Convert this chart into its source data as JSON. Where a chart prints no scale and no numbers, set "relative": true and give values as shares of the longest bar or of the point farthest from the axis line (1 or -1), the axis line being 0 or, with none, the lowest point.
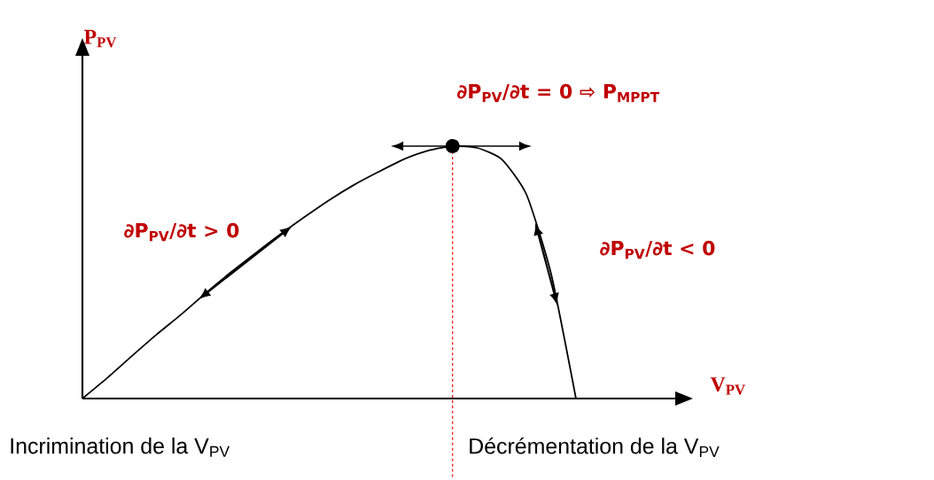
{
  "chart_data": {
    "type": "line",
    "relative": true,
    "xlabel": "V$_{PV}$",
    "ylabel": "P$_{PV}$",
    "categories": [
      null,
      null,
      null,
      null,
      null,
      null,
      null,
      null,
      null,
      null,
      null,
      null,
      null,
      null,
      null,
      null,
      null,
      null,
      null,
      null,
      null,
      null,
      null,
      null,
      null
    ],
    "series": [
      {
        "color": "#000000",
        "values": [
          0,
          0.081,
          0.168,
          0.253,
          0.333,
          0.418,
          0.499,
          0.575,
          0.649,
          0.719,
          0.786,
          0.846,
          0.898,
          0.947,
          0.982,
          1.0,
          0.993,
          0.947,
          0.807,
          0.491,
          0,
          null,
          null,
          null,
          null
        ]
      }
    ],
    "marker": "none",
    "annotations": [
      "∂P$_{PV}$/∂t = 0 ⇨ P$_{MPPT}$",
      "∂P$_{PV}$/∂t > 0",
      "∂P$_{PV}$/∂t < 0",
      "Incrimination de la V$_{PV}$",
      "Décrémentation de la V$_{PV}$"
    ]
  }
}
